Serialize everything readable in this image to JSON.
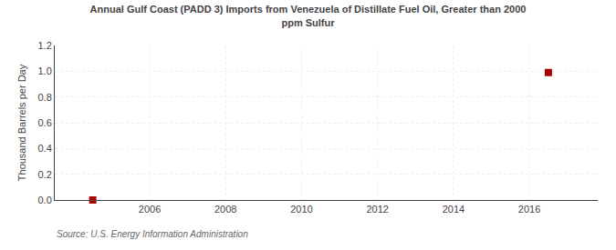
{
  "chart_data": {
    "type": "scatter",
    "title": "Annual Gulf Coast (PADD 3) Imports from Venezuela of Distillate Fuel Oil, Greater than 2000\nppm Sulfur",
    "ylabel": "Thousand Barrels per Day",
    "annotations": [
      "Source: U.S. Energy Information Administration"
    ],
    "x": [
      2004.5,
      2016.5
    ],
    "values": [
      0.0,
      0.99
    ],
    "color": "#aa0000",
    "marker": "square",
    "xlim": [
      2003.5,
      2017.8
    ],
    "ylim": [
      0.0,
      1.2
    ],
    "xticks": [
      2006,
      2008,
      2010,
      2012,
      2014,
      2016
    ],
    "yticks": [
      {
        "value": 0.0,
        "label": "0.0"
      },
      0.2,
      0.4,
      0.6,
      0.8,
      {
        "value": 1.0,
        "label": "1.0"
      },
      1.2
    ],
    "grid": true
  }
}
